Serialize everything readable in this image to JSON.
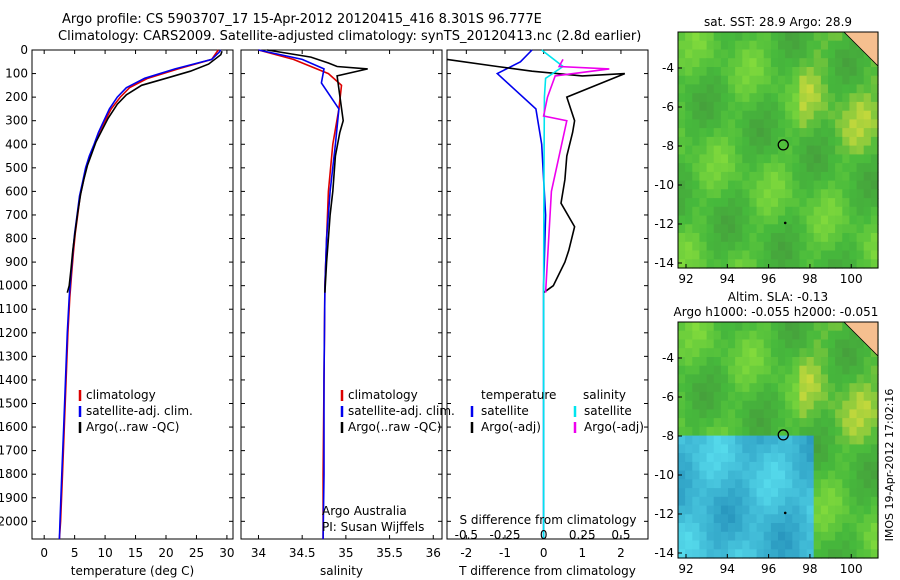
{
  "header": {
    "line1": "Argo profile: CS 5903707_17 15-Apr-2012 20120415_416 8.301S 96.777E",
    "line2": "Climatology: CARS2009. Satellite-adjusted climatology: synTS_20120413.nc (2.8d earlier)"
  },
  "colors": {
    "clim": "#dd0000",
    "sat": "#0000ee",
    "argo": "#000000",
    "sal_sat": "#00e5ee",
    "sal_argo": "#ee00ee"
  },
  "chart_data": [
    {
      "type": "line",
      "id": "temperature",
      "xlabel": "temperature (deg C)",
      "ylabel": "",
      "xlim": [
        -2,
        31
      ],
      "ylim": [
        2075,
        0
      ],
      "xticks": [
        0,
        5,
        10,
        15,
        20,
        25,
        30
      ],
      "yticks": [
        0,
        100,
        200,
        300,
        400,
        500,
        600,
        700,
        800,
        900,
        1000,
        1100,
        1200,
        1300,
        1400,
        1500,
        1600,
        1700,
        1800,
        1900,
        2000
      ],
      "legend": [
        "climatology",
        "satellite-adj. clim.",
        "Argo(..raw -QC)"
      ],
      "series": [
        {
          "name": "climatology",
          "color": "#dd0000",
          "x": [
            28.6,
            28.3,
            27.5,
            22,
            17,
            14,
            12.5,
            11,
            10,
            9,
            8.3,
            7.5,
            6.9,
            6.4,
            5.9,
            5.5,
            5.1,
            4.8,
            4.5,
            4.2,
            3.9,
            3.6,
            3.3,
            3.0,
            2.7,
            2.5
          ],
          "y": [
            0,
            10,
            40,
            80,
            120,
            160,
            200,
            250,
            300,
            350,
            400,
            450,
            500,
            560,
            620,
            700,
            780,
            860,
            950,
            1050,
            1200,
            1400,
            1600,
            1800,
            2000,
            2075
          ]
        },
        {
          "name": "satellite-adj. clim.",
          "color": "#0000ee",
          "x": [
            29,
            28.7,
            27.5,
            21.5,
            16.5,
            13.5,
            12,
            10.7,
            9.8,
            8.9,
            8.2,
            7.4,
            6.8,
            6.3,
            5.8,
            5.4,
            5.0,
            4.7,
            4.4,
            4.1,
            3.8,
            3.5,
            3.2,
            2.9,
            2.6,
            2.5
          ],
          "y": [
            0,
            10,
            40,
            80,
            120,
            160,
            200,
            250,
            300,
            350,
            400,
            450,
            500,
            560,
            620,
            700,
            780,
            860,
            950,
            1050,
            1200,
            1400,
            1600,
            1800,
            2000,
            2075
          ]
        },
        {
          "name": "Argo(..raw -QC)",
          "color": "#000000",
          "x": [
            29.2,
            29,
            27,
            24,
            20,
            16,
            13.5,
            12,
            10.5,
            9.5,
            8.5,
            7.8,
            7.1,
            6.5,
            6.0,
            5.5,
            5.1,
            4.7,
            4.4,
            4.1,
            3.8
          ],
          "y": [
            5,
            20,
            60,
            90,
            120,
            150,
            190,
            230,
            290,
            340,
            390,
            440,
            490,
            550,
            610,
            690,
            770,
            850,
            930,
            1000,
            1030
          ]
        }
      ]
    },
    {
      "type": "line",
      "id": "salinity",
      "xlabel": "salinity",
      "ylabel": "",
      "xlim": [
        33.8,
        36.1
      ],
      "ylim": [
        2075,
        0
      ],
      "xticks": [
        34,
        34.5,
        35,
        35.5,
        36
      ],
      "legend": [
        "climatology",
        "satellite-adj. clim.",
        "Argo(..raw -QC)"
      ],
      "annotations": [
        "Argo Australia",
        "PI: Susan Wijffels"
      ],
      "series": [
        {
          "name": "climatology",
          "color": "#dd0000",
          "x": [
            34.0,
            34.4,
            34.8,
            34.95,
            34.92,
            34.85,
            34.8,
            34.78,
            34.76,
            34.75,
            34.74,
            34.74
          ],
          "y": [
            0,
            40,
            100,
            150,
            250,
            400,
            600,
            800,
            1000,
            1400,
            1800,
            2075
          ]
        },
        {
          "name": "satellite-adj. clim.",
          "color": "#0000ee",
          "x": [
            34.0,
            34.5,
            34.75,
            34.72,
            34.92,
            34.88,
            34.82,
            34.78,
            34.76,
            34.75,
            34.75,
            34.74
          ],
          "y": [
            0,
            40,
            80,
            140,
            250,
            400,
            600,
            800,
            1000,
            1400,
            1800,
            2075
          ]
        },
        {
          "name": "Argo(..raw -QC)",
          "color": "#000000",
          "x": [
            34.1,
            34.6,
            34.8,
            34.9,
            35.25,
            34.9,
            34.97,
            34.93,
            34.88,
            34.85,
            34.82,
            34.8,
            34.78,
            34.76
          ],
          "y": [
            0,
            30,
            55,
            70,
            80,
            110,
            300,
            350,
            450,
            600,
            700,
            800,
            900,
            1030
          ]
        }
      ]
    },
    {
      "type": "line",
      "id": "difference",
      "xlabel": "T difference from climatology",
      "xlabel2": "S difference from climatology",
      "xlim": [
        -2.5,
        2.7
      ],
      "xlim2": [
        -0.625,
        0.675
      ],
      "ylim": [
        2075,
        0
      ],
      "xticks": [
        -2,
        -1,
        0,
        1,
        2
      ],
      "xticks2": [
        -0.5,
        -0.25,
        0,
        0.25,
        0.5
      ],
      "xticklabels2": [
        "-0.5",
        "-0.25",
        "0",
        "0.25",
        "0.5"
      ],
      "legend_headers": [
        "temperature",
        "salinity"
      ],
      "legend": [
        "satellite",
        "Argo(-adj)",
        "satellite",
        "Argo(-adj)"
      ],
      "series": [
        {
          "name": "temperature satellite",
          "color": "#0000ee",
          "x": [
            -0.3,
            -0.6,
            -1.2,
            -0.8,
            -0.2,
            -0.05,
            0.05,
            0,
            0
          ],
          "y": [
            0,
            50,
            100,
            160,
            250,
            400,
            700,
            1000,
            2075
          ]
        },
        {
          "name": "temperature Argo(-adj)",
          "color": "#000000",
          "x": [
            -2.5,
            -1.2,
            -0.3,
            1,
            2.1,
            0.6,
            0.8,
            0.75,
            0.6,
            0.55,
            0.45,
            0.8,
            0.65,
            0.55,
            0.4,
            0.25,
            0
          ],
          "y": [
            40,
            70,
            90,
            110,
            100,
            200,
            300,
            350,
            450,
            550,
            650,
            750,
            850,
            900,
            950,
            1000,
            1030
          ]
        },
        {
          "name": "salinity satellite",
          "color": "#00e5ee",
          "x": [
            -0.05,
            0.5,
            0.05,
            0.02,
            0.01,
            0,
            0
          ],
          "y": [
            0,
            70,
            120,
            200,
            500,
            1000,
            2075
          ]
        },
        {
          "name": "salinity Argo(-adj)",
          "color": "#ee00ee",
          "x": [
            0.5,
            0.4,
            1.7,
            0.3,
            0.1,
            0,
            0.6,
            0.2,
            0.05
          ],
          "y": [
            40,
            70,
            80,
            110,
            200,
            280,
            300,
            600,
            1030
          ]
        }
      ]
    }
  ],
  "maps": {
    "top": {
      "title": "sat. SST: 28.9  Argo: 28.9",
      "xticks": [
        "92",
        "94",
        "96",
        "98",
        "100"
      ],
      "yticks": [
        "-4",
        "-6",
        "-8",
        "-10",
        "-12",
        "-14"
      ]
    },
    "bottom": {
      "title1": "Altim. SLA: -0.13",
      "title2": "Argo h1000: -0.055 h2000: -0.051",
      "xticks": [
        "92",
        "94",
        "96",
        "98",
        "100"
      ],
      "yticks": [
        "-4",
        "-6",
        "-8",
        "-10",
        "-12",
        "-14"
      ]
    }
  },
  "footer": {
    "stamp": "IMOS 19-Apr-2012 17:02:16"
  }
}
